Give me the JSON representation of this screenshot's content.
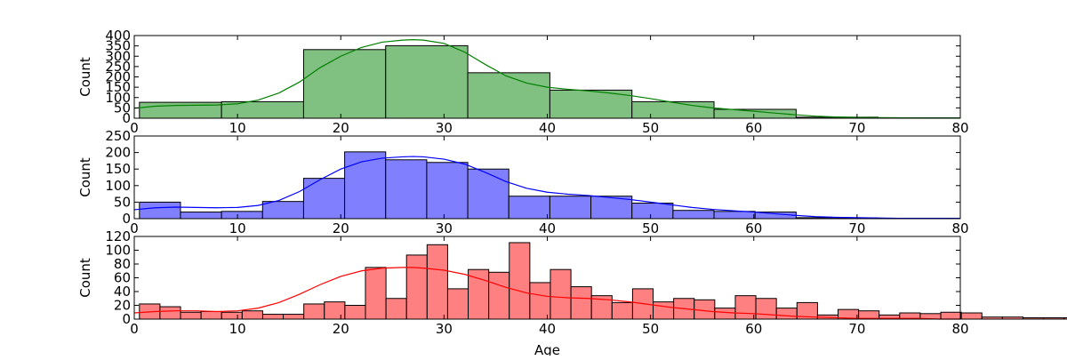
{
  "chart_data": [
    {
      "type": "bar",
      "name": "hist-8",
      "ylabel": "Count",
      "xlabel": "",
      "xlim": [
        0,
        80
      ],
      "ylim": [
        0,
        400
      ],
      "xticks": [
        0,
        10,
        20,
        30,
        40,
        50,
        60,
        70,
        80
      ],
      "yticks": [
        0,
        50,
        100,
        150,
        200,
        250,
        300,
        350,
        400
      ],
      "bins": {
        "start": 0.5,
        "width": 7.95,
        "values": [
          77,
          80,
          332,
          351,
          220,
          136,
          80,
          43,
          5,
          2
        ]
      },
      "kde": {
        "x": [
          0,
          2,
          4,
          6,
          8,
          10,
          12,
          14,
          16,
          18,
          20,
          22,
          24,
          26,
          27,
          28,
          30,
          32,
          34,
          36,
          38,
          40,
          42,
          44,
          46,
          48,
          50,
          52,
          54,
          56,
          58,
          60,
          62,
          64,
          66,
          68,
          70,
          72,
          74,
          76,
          78,
          80
        ],
        "y": [
          48,
          58,
          62,
          63,
          64,
          70,
          88,
          122,
          175,
          245,
          300,
          342,
          368,
          378,
          380,
          378,
          362,
          320,
          260,
          205,
          170,
          150,
          140,
          132,
          122,
          110,
          95,
          78,
          62,
          50,
          42,
          34,
          25,
          17,
          10,
          6,
          4,
          3,
          2,
          1,
          1,
          1
        ]
      },
      "fill": "#80c080",
      "line": "#008000"
    },
    {
      "type": "bar",
      "name": "hist-4",
      "ylabel": "Count",
      "xlabel": "",
      "xlim": [
        0,
        80
      ],
      "ylim": [
        0,
        250
      ],
      "xticks": [
        0,
        10,
        20,
        30,
        40,
        50,
        60,
        70,
        80
      ],
      "yticks": [
        0,
        50,
        100,
        150,
        200,
        250
      ],
      "bins": {
        "start": 0.5,
        "width": 3.975,
        "values": [
          50,
          20,
          22,
          52,
          122,
          202,
          178,
          170,
          150,
          68,
          68,
          68,
          47,
          25,
          22,
          20,
          3,
          2,
          1,
          1
        ]
      },
      "kde": {
        "x": [
          0,
          2,
          4,
          6,
          8,
          10,
          12,
          14,
          16,
          18,
          20,
          22,
          24,
          26,
          27,
          28,
          30,
          32,
          34,
          36,
          38,
          40,
          42,
          44,
          46,
          48,
          50,
          52,
          54,
          56,
          58,
          60,
          62,
          64,
          66,
          68,
          70,
          72,
          74,
          76,
          78,
          80
        ],
        "y": [
          27,
          33,
          35,
          34,
          33,
          34,
          40,
          55,
          82,
          118,
          150,
          172,
          183,
          187,
          188,
          187,
          180,
          165,
          140,
          112,
          92,
          80,
          74,
          70,
          64,
          58,
          50,
          42,
          34,
          28,
          24,
          20,
          15,
          10,
          6,
          4,
          3,
          2,
          1,
          1,
          1,
          1
        ]
      },
      "fill": "#8080ff",
      "line": "#0000ff"
    },
    {
      "type": "bar",
      "name": "hist-2",
      "ylabel": "Count",
      "xlabel": "Age",
      "xlim": [
        0,
        80
      ],
      "ylim": [
        0,
        120
      ],
      "xticks": [
        0,
        10,
        20,
        30,
        40,
        50,
        60,
        70,
        80
      ],
      "yticks": [
        0,
        20,
        40,
        60,
        80,
        100,
        120
      ],
      "bins": {
        "start": 0.5,
        "width": 1.99,
        "values": [
          22,
          18,
          10,
          11,
          10,
          12,
          7,
          7,
          22,
          25,
          20,
          75,
          30,
          93,
          108,
          44,
          72,
          68,
          111,
          53,
          72,
          47,
          34,
          24,
          44,
          25,
          30,
          28,
          16,
          34,
          30,
          16,
          24,
          6,
          14,
          12,
          6,
          9,
          8,
          10,
          9,
          3,
          3,
          2,
          2,
          2,
          1,
          1,
          1,
          1
        ]
      },
      "kde": {
        "x": [
          0,
          2,
          4,
          6,
          8,
          10,
          12,
          14,
          16,
          18,
          20,
          22,
          24,
          26,
          27,
          28,
          30,
          32,
          34,
          36,
          38,
          40,
          42,
          44,
          46,
          48,
          50,
          52,
          54,
          56,
          58,
          60,
          62,
          64,
          66,
          68,
          70,
          72,
          74,
          76,
          78,
          80
        ],
        "y": [
          9,
          11,
          12,
          12,
          11,
          12,
          16,
          24,
          36,
          50,
          62,
          70,
          74,
          75,
          75,
          74,
          71,
          65,
          56,
          46,
          38,
          33,
          31,
          30,
          28,
          25,
          21,
          17,
          14,
          11,
          9,
          8,
          6,
          4,
          3,
          2,
          1,
          1,
          1,
          1,
          0,
          0
        ]
      },
      "fill": "#ff8080",
      "line": "#ff0000"
    }
  ]
}
